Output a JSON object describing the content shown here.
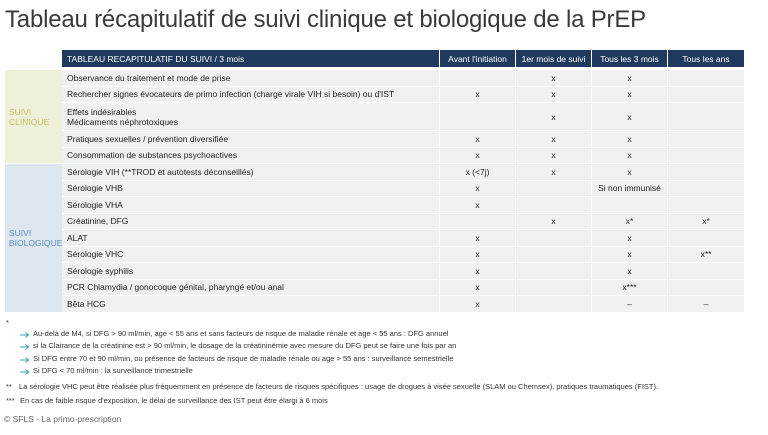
{
  "title": "Tableau récapitulatif de suivi clinique et biologique de la PrEP",
  "table": {
    "header": [
      "TABLEAU RECAPITULATIF DU SUIVI / 3 mois",
      "Avant l'initiation",
      "1er mois de suivi",
      "Tous les 3 mois",
      "Tous les ans"
    ],
    "groups": [
      {
        "label": [
          "SUIVI",
          "CLINIQUE"
        ],
        "rows": [
          {
            "label": [
              "Observance du traitement et mode de prise"
            ],
            "cells": [
              null,
              "x",
              "x",
              null
            ]
          },
          {
            "label": [
              "Rechercher signes évocateurs de primo infection (charge virale VIH si besoin) ou d'IST"
            ],
            "cells": [
              "x",
              "x",
              "x",
              null
            ]
          },
          {
            "label": [
              "Effets indésirables",
              "Médicaments néphrotoxiques"
            ],
            "cells": [
              null,
              "x",
              "x",
              null
            ]
          },
          {
            "label": [
              "Pratiques sexuelles / prévention diversifiée"
            ],
            "cells": [
              "x",
              "x",
              "x",
              null
            ]
          },
          {
            "label": [
              "Consommation de substances psychoactives"
            ],
            "cells": [
              "x",
              "x",
              "x",
              null
            ]
          }
        ]
      },
      {
        "label": [
          "SUIVI",
          "BIOLOGIQUE"
        ],
        "rows": [
          {
            "label": [
              "Sérologie VIH (**TROD et autotests déconseillés)"
            ],
            "cells": [
              "x (<7j)",
              "x",
              "x",
              null
            ]
          },
          {
            "label": [
              "Sérologie VHB"
            ],
            "cells": [
              "x",
              null,
              "Si non immunisé",
              null
            ]
          },
          {
            "label": [
              "Sérologie VHA"
            ],
            "cells": [
              "x",
              null,
              null,
              null
            ]
          },
          {
            "label": [
              "Créatinine, DFG"
            ],
            "cells": [
              null,
              "x",
              "x*",
              "x*"
            ]
          },
          {
            "label": [
              "ALAT"
            ],
            "cells": [
              "x",
              null,
              "x",
              null
            ]
          },
          {
            "label": [
              "Sérologie VHC"
            ],
            "cells": [
              "x",
              null,
              "x",
              "x**"
            ]
          },
          {
            "label": [
              "Sérologie syphilis"
            ],
            "cells": [
              "x",
              null,
              "x",
              null
            ]
          },
          {
            "label": [
              "PCR Chlamydia / gonocoque génital, pharyngé et/ou anal"
            ],
            "cells": [
              "x",
              null,
              "x***",
              null
            ]
          },
          {
            "label": [
              "Bêta HCG"
            ],
            "cells": [
              "x",
              null,
              "–",
              "–"
            ]
          }
        ]
      }
    ]
  },
  "notes": [
    {
      "mark": "*",
      "items": [
        "Au-delà de M4, si DFG > 90 ml/min, age < 55 ans et sans facteurs de risque de maladie rénale et age < 55 ans : DFG annuel",
        "si la Clairance de la créatinine est > 90 ml/min, le dosage de la créatininémie avec mesure du DFG peut se faire une fois par an",
        "Si DFG entre 70 et 90 ml/min, ou présence de facteurs de risque de maladie rénale ou age > 55 ans : surveillance semestrielle",
        "Si DFG < 70 ml/min :  la surveillance trimestrielle"
      ]
    },
    {
      "mark": "**",
      "text": "La sérologie VHC peut être réalisée plus fréquemment en présence de facteurs de risques spécifiques : usage de drogues à visée sexuelle (SLAM ou Chemsex), pratiques traumatiques (FIST)."
    },
    {
      "mark": "***",
      "text": "En cas de faible risque d'exposition, le délai de surveillance des IST peut être élargi à 6 mois"
    }
  ],
  "footer": "© SFLS - La primo-prescription"
}
